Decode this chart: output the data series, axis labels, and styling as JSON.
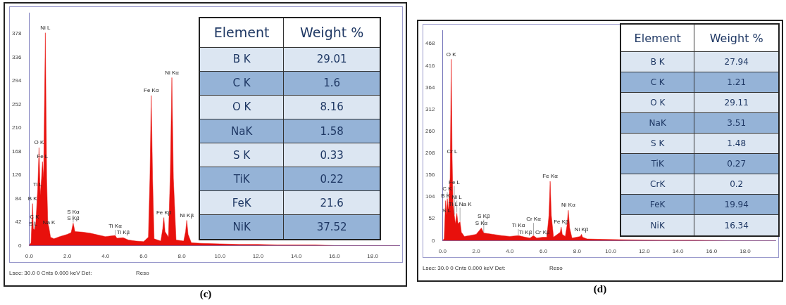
{
  "chart_data": [
    {
      "type": "area",
      "title": "(c)",
      "xlim": [
        0,
        19.4
      ],
      "ylim": [
        0,
        416
      ],
      "xticks": [
        {
          "value": 0,
          "label": "0.0"
        },
        {
          "value": 2,
          "label": "2.0"
        },
        {
          "value": 4,
          "label": "4.0"
        },
        {
          "value": 6,
          "label": "6.0"
        },
        {
          "value": 8,
          "label": "8.0"
        },
        {
          "value": 10,
          "label": "10.0"
        },
        {
          "value": 12,
          "label": "12.0"
        },
        {
          "value": 14,
          "label": "14.0"
        },
        {
          "value": 16,
          "label": "16.0"
        },
        {
          "value": 18,
          "label": "18.0"
        }
      ],
      "yticks": [
        0,
        42,
        84,
        126,
        168,
        210,
        252,
        294,
        336,
        378
      ],
      "marker": "none",
      "series": [
        {
          "color": "#e8100c",
          "x": [
            0,
            0.1,
            0.18,
            0.22,
            0.28,
            0.35,
            0.45,
            0.52,
            0.58,
            0.65,
            0.7,
            0.76,
            0.85,
            0.92,
            0.98,
            1.04,
            1.12,
            1.3,
            1.6,
            2,
            2.2,
            2.31,
            2.4,
            2.8,
            3.2,
            3.6,
            4,
            4.51,
            4.6,
            4.93,
            5.2,
            5.6,
            6,
            6.25,
            6.33,
            6.4,
            6.47,
            6.55,
            6.9,
            7,
            7.06,
            7.12,
            7.3,
            7.4,
            7.48,
            7.56,
            7.7,
            8.1,
            8.2,
            8.26,
            8.33,
            8.5,
            9,
            10,
            11,
            12,
            13,
            14,
            15,
            16,
            17,
            18,
            19.4
          ],
          "values": [
            0,
            5,
            75,
            30,
            28,
            40,
            100,
            175,
            90,
            120,
            150,
            120,
            380,
            120,
            40,
            32,
            15,
            12,
            16,
            20,
            23,
            40,
            25,
            24,
            22,
            19,
            16,
            18,
            13,
            14,
            10,
            8,
            7,
            15,
            120,
            268,
            120,
            12,
            8,
            30,
            50,
            25,
            15,
            130,
            300,
            120,
            10,
            8,
            25,
            45,
            20,
            5,
            4,
            3,
            2,
            2,
            1,
            1,
            1,
            0,
            0,
            0,
            0
          ]
        }
      ],
      "annotations": [
        {
          "text": "Ni L",
          "x": 0.85,
          "y": 380
        },
        {
          "text": "O K",
          "x": 0.52,
          "y": 175
        },
        {
          "text": "Fe L",
          "x": 0.7,
          "y": 150
        },
        {
          "text": "Ti L",
          "x": 0.45,
          "y": 100
        },
        {
          "text": "B K",
          "x": 0.18,
          "y": 75
        },
        {
          "text": "S L",
          "x": 0.22,
          "y": 30
        },
        {
          "text": "C K",
          "x": 0.28,
          "y": 28
        },
        {
          "text": "Na K",
          "x": 1.04,
          "y": 32
        },
        {
          "text": "S Kβ",
          "x": 2.31,
          "y": 40
        },
        {
          "text": "S Kα",
          "x": 2.31,
          "y": 40
        },
        {
          "text": "Ti Kβ",
          "x": 4.93,
          "y": 14
        },
        {
          "text": "Ti Kα",
          "x": 4.51,
          "y": 18
        },
        {
          "text": "Fe Kα",
          "x": 6.4,
          "y": 268
        },
        {
          "text": "Ni Kα",
          "x": 7.48,
          "y": 300
        },
        {
          "text": "Fe Kβ",
          "x": 7.06,
          "y": 50
        },
        {
          "text": "Ni Kβ",
          "x": 8.26,
          "y": 45
        },
        "Lsec: 30.0 0 Cnts 0.000 keV Det:",
        "Reso"
      ]
    },
    {
      "type": "other",
      "categories": [
        "B K",
        "C K",
        "O K",
        "NaK",
        "S K",
        "TiK",
        "FeK",
        "NiK"
      ],
      "values": [
        29.01,
        1.6,
        8.16,
        1.58,
        0.33,
        0.22,
        21.6,
        37.52
      ],
      "data_labels": true,
      "annotations": [
        "Element",
        "Weight %"
      ]
    },
    {
      "type": "area",
      "title": "(d)",
      "xlim": [
        0,
        19.8
      ],
      "ylim": [
        0,
        500
      ],
      "xticks": [
        {
          "value": 0,
          "label": "0.0"
        },
        {
          "value": 2,
          "label": "2.0"
        },
        {
          "value": 4,
          "label": "4.0"
        },
        {
          "value": 6,
          "label": "6.0"
        },
        {
          "value": 8,
          "label": "8.0"
        },
        {
          "value": 10,
          "label": "10.0"
        },
        {
          "value": 12,
          "label": "12.0"
        },
        {
          "value": 14,
          "label": "14.0"
        },
        {
          "value": 16,
          "label": "16.0"
        },
        {
          "value": 18,
          "label": "18.0"
        }
      ],
      "yticks": [
        0,
        52,
        104,
        156,
        208,
        260,
        312,
        364,
        416,
        468
      ],
      "marker": "none",
      "series": [
        {
          "color": "#e8100c",
          "x": [
            0,
            0.1,
            0.18,
            0.24,
            0.28,
            0.35,
            0.45,
            0.52,
            0.57,
            0.62,
            0.7,
            0.76,
            0.85,
            0.92,
            1.04,
            1.12,
            1.3,
            1.6,
            2,
            2.31,
            2.45,
            3,
            3.5,
            4,
            4.51,
            4.93,
            5.2,
            5.41,
            5.6,
            5.95,
            6.2,
            6.33,
            6.4,
            6.47,
            6.6,
            7,
            7.06,
            7.12,
            7.3,
            7.4,
            7.48,
            7.56,
            7.7,
            8.2,
            8.26,
            8.33,
            8.6,
            9.5,
            11,
            13,
            15,
            17,
            19.8
          ],
          "values": [
            0,
            5,
            95,
            60,
            100,
            70,
            150,
            431,
            200,
            90,
            60,
            40,
            65,
            40,
            45,
            20,
            10,
            12,
            15,
            30,
            18,
            15,
            12,
            10,
            12,
            8,
            6,
            12,
            6,
            8,
            8,
            60,
            141,
            60,
            8,
            20,
            32,
            15,
            10,
            35,
            72,
            30,
            6,
            10,
            15,
            8,
            4,
            3,
            2,
            1,
            1,
            0,
            0
          ]
        }
      ],
      "annotations": [
        {
          "text": "O K",
          "x": 0.52,
          "y": 431
        },
        {
          "text": "Cr L",
          "x": 0.57,
          "y": 200
        },
        {
          "text": "B K",
          "x": 0.18,
          "y": 95
        },
        {
          "text": "S L",
          "x": 0.24,
          "y": 60
        },
        {
          "text": "Ti L Na K",
          "x": 1.04,
          "y": 45
        },
        {
          "text": "C K",
          "x": 0.28,
          "y": 100
        },
        {
          "text": "Ni L",
          "x": 0.85,
          "y": 65
        },
        {
          "text": "Fe L",
          "x": 0.7,
          "y": 60
        },
        {
          "text": "S Kα",
          "x": 2.31,
          "y": 30
        },
        {
          "text": "S Kβ",
          "x": 2.45,
          "y": 18
        },
        {
          "text": "Ti Kβ",
          "x": 4.93,
          "y": 8
        },
        {
          "text": "Ti Kα",
          "x": 4.51,
          "y": 12
        },
        {
          "text": "Cr Kα",
          "x": 5.41,
          "y": 12
        },
        {
          "text": "Cr Kβ",
          "x": 5.95,
          "y": 8
        },
        {
          "text": "Fe Kα",
          "x": 6.4,
          "y": 141
        },
        {
          "text": "Ni Kα",
          "x": 7.48,
          "y": 72
        },
        {
          "text": "Fe Kβ",
          "x": 7.06,
          "y": 32
        },
        {
          "text": "Ni Kβ",
          "x": 8.26,
          "y": 15
        },
        "Lsec: 30.0 0 Cnts 0.000 keV Det:",
        "Reso"
      ]
    },
    {
      "type": "other",
      "categories": [
        "B K",
        "C K",
        "O K",
        "NaK",
        "S K",
        "TiK",
        "CrK",
        "FeK",
        "NiK"
      ],
      "values": [
        27.94,
        1.21,
        29.11,
        3.51,
        1.48,
        0.27,
        0.2,
        19.94,
        16.34
      ],
      "data_labels": true,
      "annotations": [
        "Element",
        "Weight %"
      ]
    }
  ]
}
